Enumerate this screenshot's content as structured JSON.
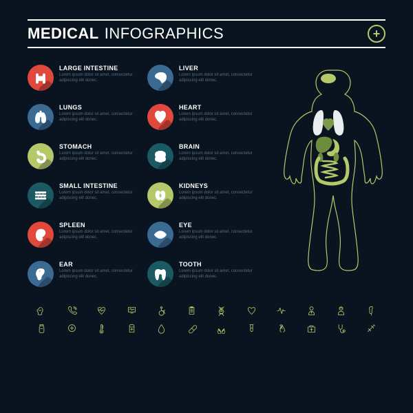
{
  "header": {
    "title_bold": "MEDICAL",
    "title_light": "INFOGRAPHICS",
    "plus_color": "#b5c96b"
  },
  "colors": {
    "red": "#e1493d",
    "blue": "#3b6a93",
    "olive": "#b5c96b",
    "teal": "#1b5a63",
    "bg": "#0a1420",
    "desc": "#5b6a7a"
  },
  "organs": [
    {
      "label": "LARGE INTESTINE",
      "color": "#e1493d",
      "icon": "colon",
      "desc": "Lorem ipsum dolor sit amet, consectetur adipiscing elit donec."
    },
    {
      "label": "LIVER",
      "color": "#3b6a93",
      "icon": "liver",
      "desc": "Lorem ipsum dolor sit amet, consectetur adipiscing elit donec."
    },
    {
      "label": "LUNGS",
      "color": "#3b6a93",
      "icon": "lungs",
      "desc": "Lorem ipsum dolor sit amet, consectetur adipiscing elit donec."
    },
    {
      "label": "HEART",
      "color": "#e1493d",
      "icon": "heart",
      "desc": "Lorem ipsum dolor sit amet, consectetur adipiscing elit donec."
    },
    {
      "label": "STOMACH",
      "color": "#b5c96b",
      "icon": "stomach",
      "desc": "Lorem ipsum dolor sit amet, consectetur adipiscing elit donec."
    },
    {
      "label": "BRAIN",
      "color": "#1b5a63",
      "icon": "brain",
      "desc": "Lorem ipsum dolor sit amet, consectetur adipiscing elit donec."
    },
    {
      "label": "SMALL INTESTINE",
      "color": "#1b5a63",
      "icon": "intestine",
      "desc": "Lorem ipsum dolor sit amet, consectetur adipiscing elit donec."
    },
    {
      "label": "KIDNEYS",
      "color": "#b5c96b",
      "icon": "kidneys",
      "desc": "Lorem ipsum dolor sit amet, consectetur adipiscing elit donec."
    },
    {
      "label": "SPLEEN",
      "color": "#e1493d",
      "icon": "spleen",
      "desc": "Lorem ipsum dolor sit amet, consectetur adipiscing elit donec."
    },
    {
      "label": "EYE",
      "color": "#3b6a93",
      "icon": "eye",
      "desc": "Lorem ipsum dolor sit amet, consectetur adipiscing elit donec."
    },
    {
      "label": "EAR",
      "color": "#3b6a93",
      "icon": "ear",
      "desc": "Lorem ipsum dolor sit amet, consectetur adipiscing elit donec."
    },
    {
      "label": "TOOTH",
      "color": "#1b5a63",
      "icon": "tooth",
      "desc": "Lorem ipsum dolor sit amet, consectetur adipiscing elit donec."
    }
  ],
  "footer_icons": [
    "pharmacy",
    "phone",
    "heartbeat",
    "monitor",
    "wheelchair",
    "clipboard",
    "dna",
    "heart-rate",
    "pulse",
    "doctor",
    "nurse",
    "iv",
    "jar",
    "plus",
    "thermometer",
    "medicine",
    "drop",
    "pill",
    "hands",
    "testtube",
    "ribbon",
    "firstaid",
    "stethoscope",
    "syringe"
  ],
  "body_colors": {
    "outline": "#b5c96b",
    "brain": "#b5c96b",
    "heart": "#7a9a4d",
    "lungs": "#e8eef0",
    "liver": "#6d8c3d",
    "stomach": "#b5c96b",
    "intestine": "#b5c96b",
    "kidneys": "#6d8c3d"
  }
}
